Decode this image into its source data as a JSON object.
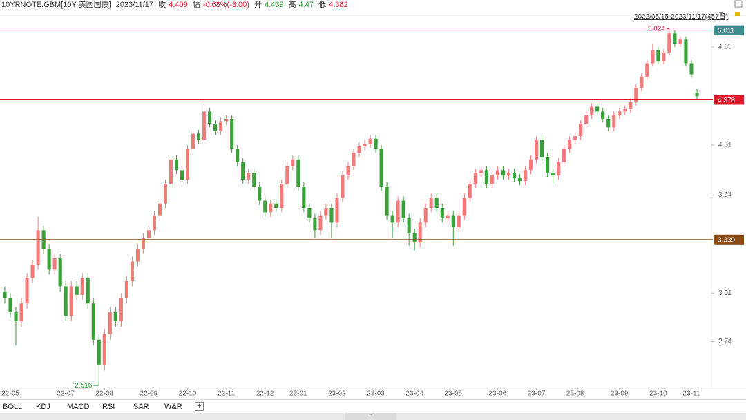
{
  "header": {
    "symbol": "10YRNOTE.GBM[10Y 美国国债]",
    "date": "2023/11/17",
    "close_label": "收",
    "change_label": "幅",
    "change": "-0.68%(-3.00)",
    "open_label": "开",
    "high_label": "高",
    "low_label": "低"
  },
  "range_label": "2022/05/15-2023/11/17(457日)",
  "indicator_tabs": [
    "BOLL",
    "KDJ",
    "MACD",
    "RSI",
    "SAR",
    "W&R"
  ],
  "chart_data": {
    "type": "candlestick",
    "log_scale": true,
    "grid": false,
    "up_color": "#f07b7b",
    "down_color": "#3aa03a",
    "ylim": [
      2.503,
      5.117
    ],
    "yticks": [
      4.85,
      4.01,
      3.64,
      3.01,
      2.74
    ],
    "xlim": [
      -0.5,
      125.5
    ],
    "xticks": [
      {
        "value": 1,
        "label": "22-05"
      },
      {
        "value": 11,
        "label": "22-07"
      },
      {
        "value": 18,
        "label": "22-08"
      },
      {
        "value": 26,
        "label": "22-09"
      },
      {
        "value": 33,
        "label": "22-10"
      },
      {
        "value": 40,
        "label": "22-11"
      },
      {
        "value": 47,
        "label": "22-12"
      },
      {
        "value": 53,
        "label": "23-01"
      },
      {
        "value": 60,
        "label": "23-02"
      },
      {
        "value": 67,
        "label": "23-03"
      },
      {
        "value": 74,
        "label": "23-04"
      },
      {
        "value": 81,
        "label": "23-05"
      },
      {
        "value": 89,
        "label": "23-06"
      },
      {
        "value": 96,
        "label": "23-07"
      },
      {
        "value": 103,
        "label": "23-08"
      },
      {
        "value": 111,
        "label": "23-09"
      },
      {
        "value": 118,
        "label": "23-10"
      },
      {
        "value": 124,
        "label": "23-11"
      }
    ],
    "price_lines": [
      {
        "value": 5.011,
        "color": "#3f8c8c"
      },
      {
        "value": 4.378,
        "color": "#e0162b"
      },
      {
        "value": 3.339,
        "color": "#8b4a14"
      }
    ],
    "max_mark": {
      "color": "#e0162b"
    },
    "min_mark": {
      "color": "#1a9a2c"
    },
    "candles": [
      [
        3.02,
        3.05,
        2.95,
        2.98
      ],
      [
        2.98,
        3.01,
        2.87,
        2.9
      ],
      [
        2.9,
        2.93,
        2.72,
        2.85
      ],
      [
        2.85,
        2.98,
        2.82,
        2.95
      ],
      [
        2.95,
        3.13,
        2.92,
        3.1
      ],
      [
        3.1,
        3.21,
        3.07,
        3.18
      ],
      [
        3.18,
        3.49,
        3.15,
        3.4
      ],
      [
        3.4,
        3.43,
        3.25,
        3.28
      ],
      [
        3.28,
        3.31,
        3.12,
        3.15
      ],
      [
        3.15,
        3.25,
        3.12,
        3.22
      ],
      [
        3.22,
        3.25,
        3.02,
        3.05
      ],
      [
        3.05,
        3.08,
        2.85,
        2.88
      ],
      [
        2.88,
        3.08,
        2.85,
        3.05
      ],
      [
        3.05,
        3.08,
        2.97,
        3.0
      ],
      [
        3.0,
        3.13,
        2.97,
        3.1
      ],
      [
        3.1,
        3.13,
        2.92,
        2.95
      ],
      [
        2.95,
        2.98,
        2.72,
        2.75
      ],
      [
        2.75,
        2.78,
        2.516,
        2.62
      ],
      [
        2.62,
        2.81,
        2.59,
        2.78
      ],
      [
        2.78,
        2.93,
        2.75,
        2.9
      ],
      [
        2.9,
        2.93,
        2.82,
        2.85
      ],
      [
        2.85,
        3.01,
        2.82,
        2.98
      ],
      [
        2.98,
        3.11,
        2.95,
        3.08
      ],
      [
        3.08,
        3.23,
        3.05,
        3.2
      ],
      [
        3.2,
        3.31,
        3.17,
        3.28
      ],
      [
        3.28,
        3.38,
        3.25,
        3.35
      ],
      [
        3.35,
        3.43,
        3.32,
        3.4
      ],
      [
        3.4,
        3.53,
        3.37,
        3.5
      ],
      [
        3.5,
        3.61,
        3.47,
        3.58
      ],
      [
        3.58,
        3.75,
        3.55,
        3.72
      ],
      [
        3.72,
        3.93,
        3.69,
        3.9
      ],
      [
        3.9,
        3.93,
        3.79,
        3.82
      ],
      [
        3.82,
        3.85,
        3.72,
        3.75
      ],
      [
        3.75,
        4.01,
        3.72,
        3.98
      ],
      [
        3.98,
        4.13,
        3.95,
        4.1
      ],
      [
        4.1,
        4.13,
        4.02,
        4.05
      ],
      [
        4.05,
        4.34,
        4.02,
        4.28
      ],
      [
        4.28,
        4.31,
        4.15,
        4.18
      ],
      [
        4.18,
        4.21,
        4.09,
        4.12
      ],
      [
        4.12,
        4.23,
        4.09,
        4.2
      ],
      [
        4.2,
        4.25,
        4.17,
        4.22
      ],
      [
        4.22,
        4.25,
        3.95,
        3.98
      ],
      [
        3.98,
        4.01,
        3.85,
        3.88
      ],
      [
        3.88,
        3.91,
        3.72,
        3.75
      ],
      [
        3.75,
        3.83,
        3.72,
        3.8
      ],
      [
        3.8,
        3.83,
        3.67,
        3.7
      ],
      [
        3.7,
        3.73,
        3.57,
        3.6
      ],
      [
        3.6,
        3.63,
        3.49,
        3.52
      ],
      [
        3.52,
        3.61,
        3.49,
        3.58
      ],
      [
        3.58,
        3.61,
        3.52,
        3.55
      ],
      [
        3.55,
        3.75,
        3.52,
        3.72
      ],
      [
        3.72,
        3.88,
        3.69,
        3.85
      ],
      [
        3.85,
        3.93,
        3.82,
        3.9
      ],
      [
        3.9,
        3.93,
        3.67,
        3.7
      ],
      [
        3.7,
        3.73,
        3.52,
        3.55
      ],
      [
        3.55,
        3.58,
        3.45,
        3.48
      ],
      [
        3.48,
        3.51,
        3.35,
        3.4
      ],
      [
        3.4,
        3.53,
        3.37,
        3.5
      ],
      [
        3.5,
        3.58,
        3.47,
        3.55
      ],
      [
        3.55,
        3.58,
        3.35,
        3.45
      ],
      [
        3.45,
        3.65,
        3.42,
        3.62
      ],
      [
        3.62,
        3.81,
        3.59,
        3.78
      ],
      [
        3.78,
        3.88,
        3.75,
        3.85
      ],
      [
        3.85,
        3.98,
        3.82,
        3.95
      ],
      [
        3.95,
        4.03,
        3.92,
        4.0
      ],
      [
        4.0,
        4.05,
        3.97,
        4.02
      ],
      [
        4.02,
        4.09,
        3.99,
        4.06
      ],
      [
        4.06,
        4.09,
        3.95,
        3.98
      ],
      [
        3.98,
        4.01,
        3.67,
        3.7
      ],
      [
        3.7,
        3.73,
        3.47,
        3.5
      ],
      [
        3.5,
        3.53,
        3.35,
        3.45
      ],
      [
        3.45,
        3.63,
        3.42,
        3.6
      ],
      [
        3.6,
        3.63,
        3.45,
        3.48
      ],
      [
        3.48,
        3.51,
        3.3,
        3.38
      ],
      [
        3.38,
        3.41,
        3.27,
        3.32
      ],
      [
        3.32,
        3.48,
        3.29,
        3.45
      ],
      [
        3.45,
        3.58,
        3.42,
        3.55
      ],
      [
        3.55,
        3.65,
        3.52,
        3.62
      ],
      [
        3.62,
        3.65,
        3.52,
        3.55
      ],
      [
        3.55,
        3.58,
        3.45,
        3.48
      ],
      [
        3.48,
        3.53,
        3.45,
        3.5
      ],
      [
        3.5,
        3.53,
        3.3,
        3.42
      ],
      [
        3.42,
        3.53,
        3.39,
        3.5
      ],
      [
        3.5,
        3.65,
        3.47,
        3.62
      ],
      [
        3.62,
        3.75,
        3.59,
        3.72
      ],
      [
        3.72,
        3.83,
        3.69,
        3.8
      ],
      [
        3.8,
        3.85,
        3.77,
        3.82
      ],
      [
        3.82,
        3.85,
        3.69,
        3.72
      ],
      [
        3.72,
        3.81,
        3.69,
        3.78
      ],
      [
        3.78,
        3.85,
        3.75,
        3.82
      ],
      [
        3.82,
        3.85,
        3.75,
        3.78
      ],
      [
        3.78,
        3.83,
        3.75,
        3.8
      ],
      [
        3.8,
        3.83,
        3.73,
        3.76
      ],
      [
        3.76,
        3.79,
        3.71,
        3.74
      ],
      [
        3.74,
        3.85,
        3.71,
        3.82
      ],
      [
        3.82,
        3.93,
        3.79,
        3.9
      ],
      [
        3.9,
        4.08,
        3.87,
        4.05
      ],
      [
        4.05,
        4.08,
        3.89,
        3.92
      ],
      [
        3.92,
        3.95,
        3.77,
        3.8
      ],
      [
        3.8,
        3.83,
        3.72,
        3.78
      ],
      [
        3.78,
        3.91,
        3.75,
        3.88
      ],
      [
        3.88,
        4.01,
        3.85,
        3.98
      ],
      [
        3.98,
        4.08,
        3.95,
        4.05
      ],
      [
        4.05,
        4.11,
        4.02,
        4.08
      ],
      [
        4.08,
        4.21,
        4.05,
        4.18
      ],
      [
        4.18,
        4.28,
        4.15,
        4.25
      ],
      [
        4.25,
        4.35,
        4.22,
        4.32
      ],
      [
        4.32,
        4.35,
        4.25,
        4.28
      ],
      [
        4.28,
        4.31,
        4.19,
        4.22
      ],
      [
        4.22,
        4.25,
        4.12,
        4.15
      ],
      [
        4.15,
        4.28,
        4.12,
        4.25
      ],
      [
        4.25,
        4.31,
        4.22,
        4.28
      ],
      [
        4.28,
        4.33,
        4.25,
        4.3
      ],
      [
        4.3,
        4.39,
        4.27,
        4.36
      ],
      [
        4.36,
        4.51,
        4.33,
        4.48
      ],
      [
        4.48,
        4.61,
        4.45,
        4.58
      ],
      [
        4.58,
        4.73,
        4.55,
        4.7
      ],
      [
        4.7,
        4.88,
        4.67,
        4.82
      ],
      [
        4.82,
        4.85,
        4.69,
        4.72
      ],
      [
        4.72,
        4.83,
        4.69,
        4.8
      ],
      [
        4.8,
        5.024,
        4.77,
        4.98
      ],
      [
        4.98,
        5.01,
        4.85,
        4.88
      ],
      [
        4.88,
        4.95,
        4.85,
        4.92
      ],
      [
        4.92,
        4.95,
        4.67,
        4.7
      ],
      [
        4.7,
        4.73,
        4.57,
        4.6
      ],
      [
        4.439,
        4.47,
        4.382,
        4.409
      ]
    ]
  }
}
